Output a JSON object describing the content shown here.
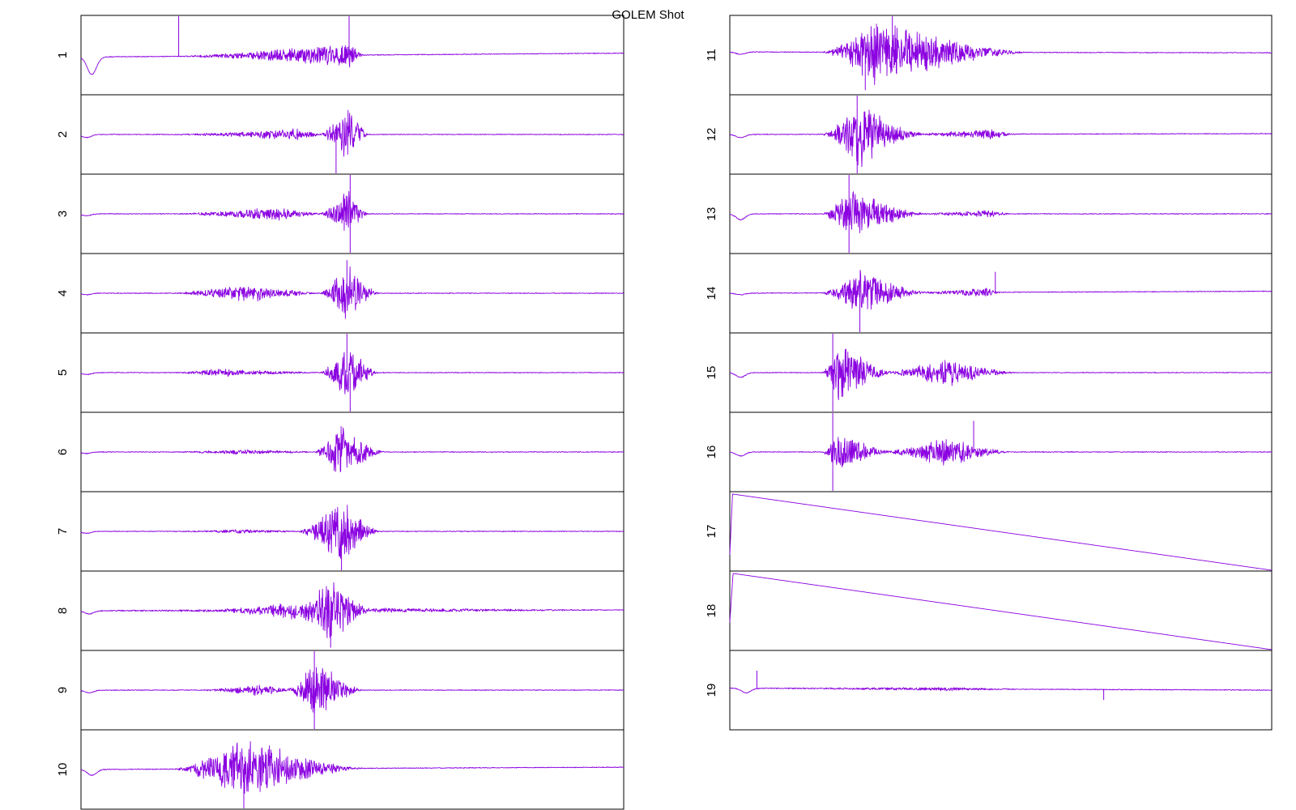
{
  "chart_data": {
    "type": "line",
    "title": "GOLEM Shot",
    "colors": {
      "trace": "#8a00e0",
      "frame": "#000000",
      "background": "#ffffff"
    },
    "x_ticks_shown": false,
    "y_ticks_shown": false,
    "grid": false,
    "panels": [
      {
        "label": "1",
        "column": "left",
        "kind": "burst",
        "y_range": [
          -1,
          1
        ],
        "dip": {
          "at": 0.02,
          "depth": 0.45
        },
        "baseline": {
          "start": -0.05,
          "end": 0.05
        },
        "bursts": [
          {
            "start": 0.18,
            "end": 0.52,
            "peak": 0.5,
            "amplitude": 0.35
          }
        ],
        "spikes": [
          {
            "at": 0.18,
            "value": 1.0
          },
          {
            "at": 0.494,
            "value": 1.0
          }
        ]
      },
      {
        "label": "2",
        "column": "left",
        "kind": "burst",
        "y_range": [
          -1,
          1
        ],
        "dip": {
          "at": 0.01,
          "depth": 0.08
        },
        "baseline": {
          "start": 0.0,
          "end": 0.0
        },
        "bursts": [
          {
            "start": 0.17,
            "end": 0.45,
            "peak": 0.4,
            "amplitude": 0.15
          },
          {
            "start": 0.44,
            "end": 0.53,
            "peak": 0.49,
            "amplitude": 0.85
          }
        ],
        "spikes": [
          {
            "at": 0.47,
            "value": -1.0
          }
        ]
      },
      {
        "label": "3",
        "column": "left",
        "kind": "burst",
        "y_range": [
          -1,
          1
        ],
        "dip": {
          "at": 0.01,
          "depth": 0.05
        },
        "baseline": {
          "start": 0.0,
          "end": 0.0
        },
        "bursts": [
          {
            "start": 0.17,
            "end": 0.45,
            "peak": 0.36,
            "amplitude": 0.18
          },
          {
            "start": 0.44,
            "end": 0.53,
            "peak": 0.49,
            "amplitude": 0.7
          }
        ],
        "spikes": [
          {
            "at": 0.496,
            "value": 1.0
          },
          {
            "at": 0.496,
            "value": -1.0
          }
        ]
      },
      {
        "label": "4",
        "column": "left",
        "kind": "burst",
        "y_range": [
          -1,
          1
        ],
        "dip": {
          "at": 0.01,
          "depth": 0.04
        },
        "baseline": {
          "start": 0.0,
          "end": 0.0
        },
        "bursts": [
          {
            "start": 0.17,
            "end": 0.45,
            "peak": 0.3,
            "amplitude": 0.25
          },
          {
            "start": 0.44,
            "end": 0.55,
            "peak": 0.49,
            "amplitude": 0.8
          }
        ],
        "spikes": [
          {
            "at": 0.49,
            "value": 0.85
          }
        ]
      },
      {
        "label": "5",
        "column": "left",
        "kind": "burst",
        "y_range": [
          -1,
          1
        ],
        "dip": {
          "at": 0.01,
          "depth": 0.05
        },
        "baseline": {
          "start": 0.0,
          "end": 0.0
        },
        "bursts": [
          {
            "start": 0.17,
            "end": 0.45,
            "peak": 0.25,
            "amplitude": 0.1
          },
          {
            "start": 0.44,
            "end": 0.55,
            "peak": 0.49,
            "amplitude": 0.8
          }
        ],
        "spikes": [
          {
            "at": 0.49,
            "value": 1.0
          },
          {
            "at": 0.496,
            "value": -1.0
          }
        ]
      },
      {
        "label": "6",
        "column": "left",
        "kind": "burst",
        "y_range": [
          -1,
          1
        ],
        "dip": {
          "at": 0.01,
          "depth": 0.04
        },
        "baseline": {
          "start": 0.0,
          "end": 0.0
        },
        "bursts": [
          {
            "start": 0.17,
            "end": 0.45,
            "peak": 0.3,
            "amplitude": 0.06
          },
          {
            "start": 0.43,
            "end": 0.56,
            "peak": 0.48,
            "amplitude": 0.8
          }
        ],
        "spikes": []
      },
      {
        "label": "7",
        "column": "left",
        "kind": "burst",
        "y_range": [
          -1,
          1
        ],
        "dip": {
          "at": 0.01,
          "depth": 0.05
        },
        "baseline": {
          "start": 0.0,
          "end": 0.0
        },
        "bursts": [
          {
            "start": 0.17,
            "end": 0.42,
            "peak": 0.3,
            "amplitude": 0.05
          },
          {
            "start": 0.4,
            "end": 0.55,
            "peak": 0.48,
            "amplitude": 0.9
          }
        ],
        "spikes": [
          {
            "at": 0.48,
            "value": -1.0
          }
        ]
      },
      {
        "label": "8",
        "column": "left",
        "kind": "burst",
        "y_range": [
          -1,
          1
        ],
        "dip": {
          "at": 0.015,
          "depth": 0.08
        },
        "baseline": {
          "start": 0.0,
          "end": 0.02
        },
        "bursts": [
          {
            "start": 0.0,
            "end": 1.0,
            "peak": 0.5,
            "amplitude": 0.06
          },
          {
            "start": 0.25,
            "end": 0.45,
            "peak": 0.4,
            "amplitude": 0.2
          },
          {
            "start": 0.4,
            "end": 0.53,
            "peak": 0.46,
            "amplitude": 0.85
          }
        ],
        "spikes": [
          {
            "at": 0.46,
            "value": -0.95
          }
        ]
      },
      {
        "label": "9",
        "column": "left",
        "kind": "burst",
        "y_range": [
          -1,
          1
        ],
        "dip": {
          "at": 0.015,
          "depth": 0.07
        },
        "baseline": {
          "start": 0.0,
          "end": 0.0
        },
        "bursts": [
          {
            "start": 0.22,
            "end": 0.4,
            "peak": 0.33,
            "amplitude": 0.15
          },
          {
            "start": 0.38,
            "end": 0.52,
            "peak": 0.43,
            "amplitude": 0.85
          }
        ],
        "spikes": [
          {
            "at": 0.43,
            "value": 1.0
          },
          {
            "at": 0.43,
            "value": -1.0
          }
        ]
      },
      {
        "label": "10",
        "column": "left",
        "kind": "burst",
        "y_range": [
          -1,
          1
        ],
        "dip": {
          "at": 0.02,
          "depth": 0.15
        },
        "baseline": {
          "start": 0.0,
          "end": 0.06
        },
        "bursts": [
          {
            "start": 0.17,
            "end": 0.52,
            "peak": 0.3,
            "amplitude": 0.85
          }
        ],
        "spikes": [
          {
            "at": 0.3,
            "value": -1.0
          }
        ]
      },
      {
        "label": "11",
        "column": "right",
        "kind": "burst",
        "y_range": [
          -1,
          1
        ],
        "dip": {
          "at": 0.02,
          "depth": 0.06
        },
        "baseline": {
          "start": 0.08,
          "end": 0.06
        },
        "bursts": [
          {
            "start": 0.17,
            "end": 0.55,
            "peak": 0.27,
            "amplitude": 0.9
          }
        ],
        "spikes": [
          {
            "at": 0.3,
            "value": 1.0
          },
          {
            "at": 0.25,
            "value": -0.9
          }
        ]
      },
      {
        "label": "12",
        "column": "right",
        "kind": "burst",
        "y_range": [
          -1,
          1
        ],
        "dip": {
          "at": 0.02,
          "depth": 0.08
        },
        "baseline": {
          "start": 0.0,
          "end": 0.02
        },
        "bursts": [
          {
            "start": 0.17,
            "end": 0.36,
            "peak": 0.24,
            "amplitude": 0.9
          },
          {
            "start": 0.33,
            "end": 0.53,
            "peak": 0.48,
            "amplitude": 0.15
          }
        ],
        "spikes": [
          {
            "at": 0.235,
            "value": 1.0
          },
          {
            "at": 0.235,
            "value": -1.0
          }
        ]
      },
      {
        "label": "13",
        "column": "right",
        "kind": "burst",
        "y_range": [
          -1,
          1
        ],
        "dip": {
          "at": 0.02,
          "depth": 0.15
        },
        "baseline": {
          "start": 0.0,
          "end": 0.0
        },
        "bursts": [
          {
            "start": 0.17,
            "end": 0.36,
            "peak": 0.22,
            "amplitude": 0.7
          },
          {
            "start": 0.33,
            "end": 0.52,
            "peak": 0.48,
            "amplitude": 0.1
          }
        ],
        "spikes": [
          {
            "at": 0.22,
            "value": 1.0
          },
          {
            "at": 0.22,
            "value": -1.0
          }
        ]
      },
      {
        "label": "14",
        "column": "right",
        "kind": "burst",
        "y_range": [
          -1,
          1
        ],
        "dip": {
          "at": 0.02,
          "depth": 0.04
        },
        "baseline": {
          "start": 0.0,
          "end": 0.05
        },
        "bursts": [
          {
            "start": 0.17,
            "end": 0.36,
            "peak": 0.24,
            "amplitude": 0.7
          },
          {
            "start": 0.33,
            "end": 0.5,
            "peak": 0.48,
            "amplitude": 0.12
          }
        ],
        "spikes": [
          {
            "at": 0.24,
            "value": -1.0
          },
          {
            "at": 0.49,
            "value": 0.55
          }
        ]
      },
      {
        "label": "15",
        "column": "right",
        "kind": "burst",
        "y_range": [
          -1,
          1
        ],
        "dip": {
          "at": 0.02,
          "depth": 0.12
        },
        "baseline": {
          "start": 0.0,
          "end": 0.0
        },
        "bursts": [
          {
            "start": 0.17,
            "end": 0.3,
            "peak": 0.2,
            "amplitude": 0.9
          },
          {
            "start": 0.28,
            "end": 0.53,
            "peak": 0.4,
            "amplitude": 0.4
          }
        ],
        "spikes": [
          {
            "at": 0.19,
            "value": 1.0
          },
          {
            "at": 0.19,
            "value": -1.0
          }
        ]
      },
      {
        "label": "16",
        "column": "right",
        "kind": "burst",
        "y_range": [
          -1,
          1
        ],
        "dip": {
          "at": 0.02,
          "depth": 0.1
        },
        "baseline": {
          "start": 0.0,
          "end": 0.0
        },
        "bursts": [
          {
            "start": 0.17,
            "end": 0.3,
            "peak": 0.2,
            "amplitude": 0.55
          },
          {
            "start": 0.28,
            "end": 0.52,
            "peak": 0.4,
            "amplitude": 0.4
          }
        ],
        "spikes": [
          {
            "at": 0.19,
            "value": 1.0
          },
          {
            "at": 0.19,
            "value": -1.0
          },
          {
            "at": 0.45,
            "value": 0.8
          }
        ]
      },
      {
        "label": "17",
        "column": "right",
        "kind": "ramp",
        "y_range": [
          0,
          1
        ],
        "start_value": 0.2,
        "peak_at": 0.005,
        "peak_value": 0.98,
        "end_value": 0.0
      },
      {
        "label": "18",
        "column": "right",
        "kind": "ramp",
        "y_range": [
          0,
          1
        ],
        "start_value": 0.35,
        "peak_at": 0.006,
        "peak_value": 0.98,
        "end_value": 0.0
      },
      {
        "label": "19",
        "column": "right",
        "kind": "burst",
        "y_range": [
          -1,
          1
        ],
        "dip": {
          "at": 0.03,
          "depth": 0.12
        },
        "baseline": {
          "start": 0.05,
          "end": 0.0
        },
        "bursts": [
          {
            "start": 0.05,
            "end": 0.55,
            "peak": 0.4,
            "amplitude": 0.04
          }
        ],
        "spikes": [
          {
            "at": 0.05,
            "value": 0.5
          },
          {
            "at": 0.69,
            "value": -0.25
          }
        ]
      }
    ]
  }
}
